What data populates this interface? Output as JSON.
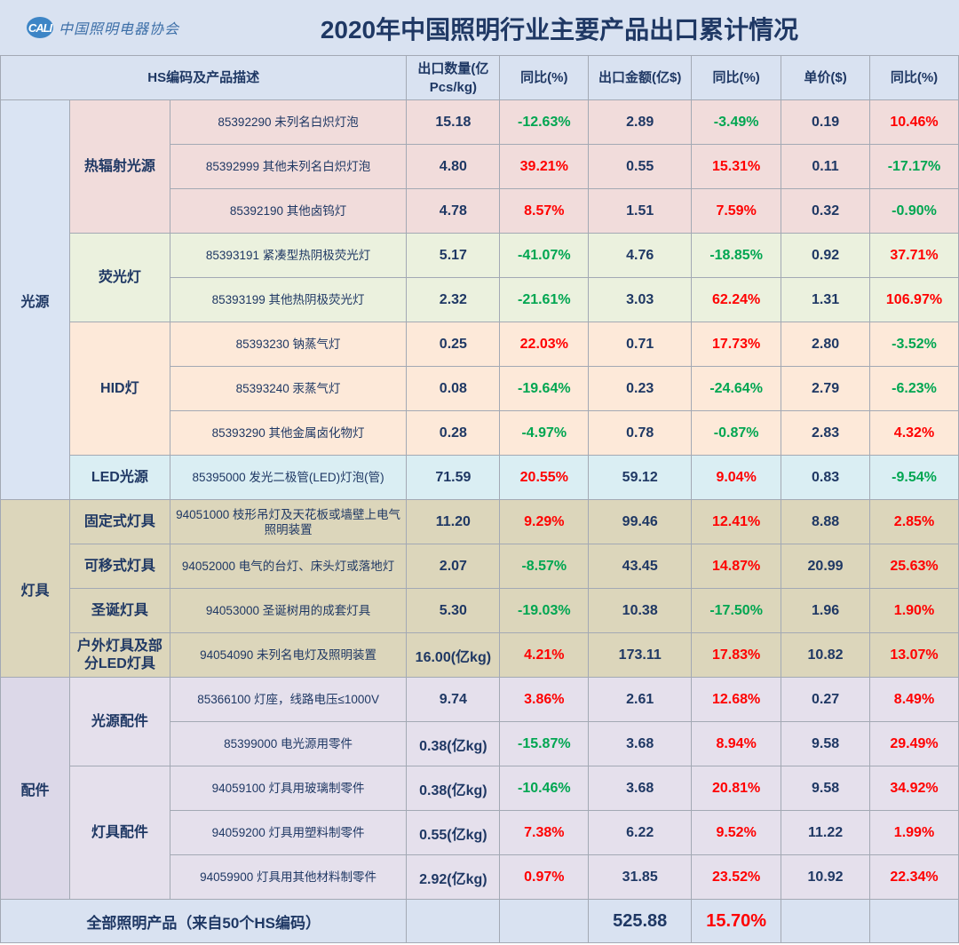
{
  "logo": {
    "mark": "CALI",
    "text": "中国照明电器协会"
  },
  "title": "2020年中国照明行业主要产品出口累计情况",
  "headers": {
    "desc": "HS编码及产品描述",
    "qty": "出口数量(亿Pcs/kg)",
    "qty_yoy": "同比(%)",
    "amount": "出口金额(亿$)",
    "amount_yoy": "同比(%)",
    "price": "单价($)",
    "price_yoy": "同比(%)"
  },
  "categories": [
    {
      "name": "光源",
      "groups": [
        {
          "name": "热辐射光源",
          "rows": [
            {
              "desc": "85392290 未列名白炽灯泡",
              "qty": "15.18",
              "qty_yoy": "-12.63%",
              "qty_yoy_c": "g",
              "amount": "2.89",
              "amount_yoy": "-3.49%",
              "amount_yoy_c": "g",
              "price": "0.19",
              "price_yoy": "10.46%",
              "price_yoy_c": "r"
            },
            {
              "desc": "85392999 其他未列名白炽灯泡",
              "qty": "4.80",
              "qty_yoy": "39.21%",
              "qty_yoy_c": "r",
              "amount": "0.55",
              "amount_yoy": "15.31%",
              "amount_yoy_c": "r",
              "price": "0.11",
              "price_yoy": "-17.17%",
              "price_yoy_c": "g"
            },
            {
              "desc": "85392190 其他卤钨灯",
              "qty": "4.78",
              "qty_yoy": "8.57%",
              "qty_yoy_c": "r",
              "amount": "1.51",
              "amount_yoy": "7.59%",
              "amount_yoy_c": "r",
              "price": "0.32",
              "price_yoy": "-0.90%",
              "price_yoy_c": "g"
            }
          ]
        },
        {
          "name": "荧光灯",
          "rows": [
            {
              "desc": "85393191 紧凑型热阴极荧光灯",
              "qty": "5.17",
              "qty_yoy": "-41.07%",
              "qty_yoy_c": "g",
              "amount": "4.76",
              "amount_yoy": "-18.85%",
              "amount_yoy_c": "g",
              "price": "0.92",
              "price_yoy": "37.71%",
              "price_yoy_c": "r"
            },
            {
              "desc": "85393199 其他热阴极荧光灯",
              "qty": "2.32",
              "qty_yoy": "-21.61%",
              "qty_yoy_c": "g",
              "amount": "3.03",
              "amount_yoy": "62.24%",
              "amount_yoy_c": "r",
              "price": "1.31",
              "price_yoy": "106.97%",
              "price_yoy_c": "r"
            }
          ]
        },
        {
          "name": "HID灯",
          "rows": [
            {
              "desc": "85393230 钠蒸气灯",
              "qty": "0.25",
              "qty_yoy": "22.03%",
              "qty_yoy_c": "r",
              "amount": "0.71",
              "amount_yoy": "17.73%",
              "amount_yoy_c": "r",
              "price": "2.80",
              "price_yoy": "-3.52%",
              "price_yoy_c": "g"
            },
            {
              "desc": "85393240 汞蒸气灯",
              "qty": "0.08",
              "qty_yoy": "-19.64%",
              "qty_yoy_c": "g",
              "amount": "0.23",
              "amount_yoy": "-24.64%",
              "amount_yoy_c": "g",
              "price": "2.79",
              "price_yoy": "-6.23%",
              "price_yoy_c": "g"
            },
            {
              "desc": "85393290 其他金属卤化物灯",
              "qty": "0.28",
              "qty_yoy": "-4.97%",
              "qty_yoy_c": "g",
              "amount": "0.78",
              "amount_yoy": "-0.87%",
              "amount_yoy_c": "g",
              "price": "2.83",
              "price_yoy": "4.32%",
              "price_yoy_c": "r"
            }
          ]
        },
        {
          "name": "LED光源",
          "rows": [
            {
              "desc": "85395000 发光二极管(LED)灯泡(管)",
              "qty": "71.59",
              "qty_yoy": "20.55%",
              "qty_yoy_c": "r",
              "amount": "59.12",
              "amount_yoy": "9.04%",
              "amount_yoy_c": "r",
              "price": "0.83",
              "price_yoy": "-9.54%",
              "price_yoy_c": "g"
            }
          ]
        }
      ]
    },
    {
      "name": "灯具",
      "groups": [
        {
          "name": "固定式灯具",
          "rows": [
            {
              "desc": "94051000 枝形吊灯及天花板或墙壁上电气照明装置",
              "qty": "11.20",
              "qty_yoy": "9.29%",
              "qty_yoy_c": "r",
              "amount": "99.46",
              "amount_yoy": "12.41%",
              "amount_yoy_c": "r",
              "price": "8.88",
              "price_yoy": "2.85%",
              "price_yoy_c": "r"
            }
          ]
        },
        {
          "name": "可移式灯具",
          "rows": [
            {
              "desc": "94052000 电气的台灯、床头灯或落地灯",
              "qty": "2.07",
              "qty_yoy": "-8.57%",
              "qty_yoy_c": "g",
              "amount": "43.45",
              "amount_yoy": "14.87%",
              "amount_yoy_c": "r",
              "price": "20.99",
              "price_yoy": "25.63%",
              "price_yoy_c": "r"
            }
          ]
        },
        {
          "name": "圣诞灯具",
          "rows": [
            {
              "desc": "94053000 圣诞树用的成套灯具",
              "qty": "5.30",
              "qty_yoy": "-19.03%",
              "qty_yoy_c": "g",
              "amount": "10.38",
              "amount_yoy": "-17.50%",
              "amount_yoy_c": "g",
              "price": "1.96",
              "price_yoy": "1.90%",
              "price_yoy_c": "r"
            }
          ]
        },
        {
          "name": "户外灯具及部分LED灯具",
          "rows": [
            {
              "desc": "94054090 未列名电灯及照明装置",
              "qty": "16.00(亿kg)",
              "qty_yoy": "4.21%",
              "qty_yoy_c": "r",
              "amount": "173.11",
              "amount_yoy": "17.83%",
              "amount_yoy_c": "r",
              "price": "10.82",
              "price_yoy": "13.07%",
              "price_yoy_c": "r"
            }
          ]
        }
      ]
    },
    {
      "name": "配件",
      "groups": [
        {
          "name": "光源配件",
          "rows": [
            {
              "desc": "85366100 灯座，线路电压≤1000V",
              "qty": "9.74",
              "qty_yoy": "3.86%",
              "qty_yoy_c": "r",
              "amount": "2.61",
              "amount_yoy": "12.68%",
              "amount_yoy_c": "r",
              "price": "0.27",
              "price_yoy": "8.49%",
              "price_yoy_c": "r"
            },
            {
              "desc": "85399000 电光源用零件",
              "qty": "0.38(亿kg)",
              "qty_yoy": "-15.87%",
              "qty_yoy_c": "g",
              "amount": "3.68",
              "amount_yoy": "8.94%",
              "amount_yoy_c": "r",
              "price": "9.58",
              "price_yoy": "29.49%",
              "price_yoy_c": "r"
            }
          ]
        },
        {
          "name": "灯具配件",
          "rows": [
            {
              "desc": "94059100 灯具用玻璃制零件",
              "qty": "0.38(亿kg)",
              "qty_yoy": "-10.46%",
              "qty_yoy_c": "g",
              "amount": "3.68",
              "amount_yoy": "20.81%",
              "amount_yoy_c": "r",
              "price": "9.58",
              "price_yoy": "34.92%",
              "price_yoy_c": "r"
            },
            {
              "desc": "94059200 灯具用塑料制零件",
              "qty": "0.55(亿kg)",
              "qty_yoy": "7.38%",
              "qty_yoy_c": "r",
              "amount": "6.22",
              "amount_yoy": "9.52%",
              "amount_yoy_c": "r",
              "price": "11.22",
              "price_yoy": "1.99%",
              "price_yoy_c": "r"
            },
            {
              "desc": "94059900 灯具用其他材料制零件",
              "qty": "2.92(亿kg)",
              "qty_yoy": "0.97%",
              "qty_yoy_c": "r",
              "amount": "31.85",
              "amount_yoy": "23.52%",
              "amount_yoy_c": "r",
              "price": "10.92",
              "price_yoy": "22.34%",
              "price_yoy_c": "r"
            }
          ]
        }
      ]
    }
  ],
  "total": {
    "label": "全部照明产品（来自50个HS编码）",
    "amount": "525.88",
    "amount_yoy": "15.70%"
  }
}
